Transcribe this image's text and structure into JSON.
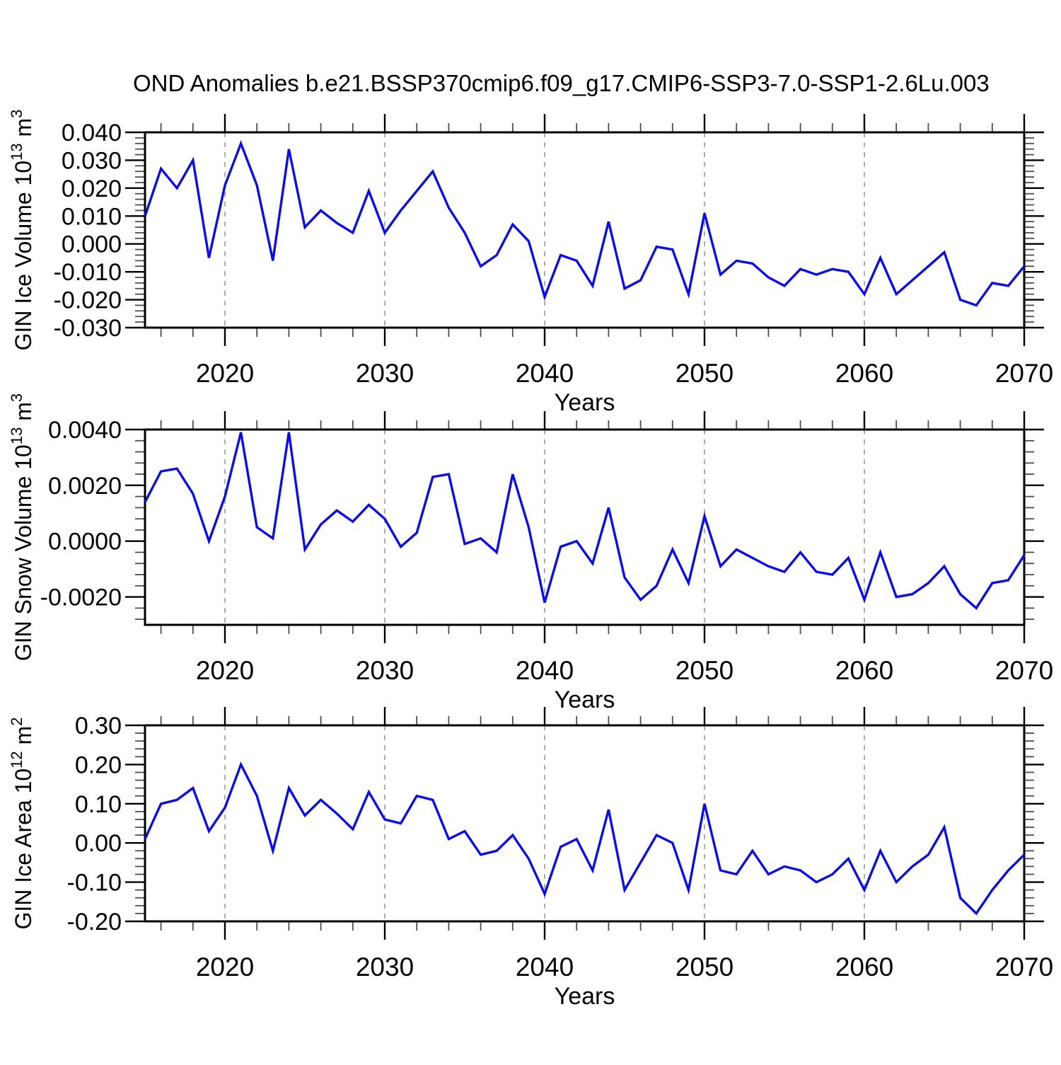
{
  "figure": {
    "title": "OND Anomalies b.e21.BSSP370cmip6.f09_g17.CMIP6-SSP3-7.0-SSP1-2.6Lu.003",
    "xlabel": "Years",
    "colors": {
      "line": "#0b0bf0",
      "axis": "#000000",
      "grid": "#9a9a9a",
      "minor_tick": "#4d4d4d",
      "background": "#ffffff"
    }
  },
  "chart_data": [
    {
      "type": "line",
      "title": "",
      "ylabel": "GIN Ice Volume 10^13 m^3",
      "ylabel_parts": [
        [
          "GIN Ice Volume 10",
          0
        ],
        [
          "13",
          1
        ],
        [
          " m",
          0
        ],
        [
          "3",
          1
        ]
      ],
      "xlabel": "Years",
      "legend": "none",
      "grid_years": [
        2020,
        2030,
        2040,
        2050,
        2060
      ],
      "xlim": [
        2015,
        2070
      ],
      "ylim": [
        -0.03,
        0.04
      ],
      "yticks": [
        0.04,
        0.03,
        0.02,
        0.01,
        0.0,
        -0.01,
        -0.02,
        -0.03
      ],
      "ytick_labels": [
        "0.040",
        "0.030",
        "0.020",
        "0.010",
        "0.000",
        "-0.010",
        "-0.020",
        "-0.030"
      ],
      "yminor_step": 0.002,
      "xticks": [
        2020,
        2030,
        2040,
        2050,
        2060,
        2070
      ],
      "xminor_step": 2,
      "x": [
        2015,
        2016,
        2017,
        2018,
        2019,
        2020,
        2021,
        2022,
        2023,
        2024,
        2025,
        2026,
        2027,
        2028,
        2029,
        2030,
        2031,
        2032,
        2033,
        2034,
        2035,
        2036,
        2037,
        2038,
        2039,
        2040,
        2041,
        2042,
        2043,
        2044,
        2045,
        2046,
        2047,
        2048,
        2049,
        2050,
        2051,
        2052,
        2053,
        2054,
        2055,
        2056,
        2057,
        2058,
        2059,
        2060,
        2061,
        2062,
        2063,
        2064,
        2065,
        2066,
        2067,
        2068,
        2069,
        2070
      ],
      "values": [
        0.01,
        0.027,
        0.02,
        0.03,
        -0.005,
        0.021,
        0.036,
        0.021,
        -0.006,
        0.034,
        0.006,
        0.012,
        0.0075,
        0.004,
        0.019,
        0.004,
        0.012,
        0.019,
        0.026,
        0.013,
        0.004,
        -0.008,
        -0.004,
        0.007,
        0.001,
        -0.019,
        -0.004,
        -0.006,
        -0.015,
        0.008,
        -0.016,
        -0.013,
        -0.001,
        -0.002,
        -0.018,
        0.011,
        -0.011,
        -0.006,
        -0.007,
        -0.012,
        -0.015,
        -0.009,
        -0.011,
        -0.009,
        -0.01,
        -0.018,
        -0.005,
        -0.018,
        -0.013,
        -0.008,
        -0.003,
        -0.02,
        -0.022,
        -0.014,
        -0.015,
        -0.008
      ]
    },
    {
      "type": "line",
      "title": "",
      "ylabel": "GIN Snow Volume 10^13 m^3",
      "ylabel_parts": [
        [
          "GIN Snow Volume 10",
          0
        ],
        [
          "13",
          1
        ],
        [
          " m",
          0
        ],
        [
          "3",
          1
        ]
      ],
      "xlabel": "Years",
      "legend": "none",
      "grid_years": [
        2020,
        2030,
        2040,
        2050,
        2060
      ],
      "xlim": [
        2015,
        2070
      ],
      "ylim": [
        -0.003,
        0.004
      ],
      "yticks": [
        0.004,
        0.002,
        0.0,
        -0.002
      ],
      "ytick_labels": [
        "0.0040",
        "0.0020",
        "0.0000",
        "-0.0020"
      ],
      "yminor_step": 0.0004,
      "xticks": [
        2020,
        2030,
        2040,
        2050,
        2060,
        2070
      ],
      "xminor_step": 2,
      "x": [
        2015,
        2016,
        2017,
        2018,
        2019,
        2020,
        2021,
        2022,
        2023,
        2024,
        2025,
        2026,
        2027,
        2028,
        2029,
        2030,
        2031,
        2032,
        2033,
        2034,
        2035,
        2036,
        2037,
        2038,
        2039,
        2040,
        2041,
        2042,
        2043,
        2044,
        2045,
        2046,
        2047,
        2048,
        2049,
        2050,
        2051,
        2052,
        2053,
        2054,
        2055,
        2056,
        2057,
        2058,
        2059,
        2060,
        2061,
        2062,
        2063,
        2064,
        2065,
        2066,
        2067,
        2068,
        2069,
        2070
      ],
      "values": [
        0.0014,
        0.0025,
        0.0026,
        0.0017,
        0.0,
        0.0016,
        0.0039,
        0.0005,
        0.0001,
        0.0039,
        -0.0003,
        0.0006,
        0.0011,
        0.0007,
        0.0013,
        0.0008,
        -0.0002,
        0.0003,
        0.0023,
        0.0024,
        -0.0001,
        0.0001,
        -0.0004,
        0.0024,
        0.0005,
        -0.0022,
        -0.0002,
        0.0,
        -0.0008,
        0.0012,
        -0.0013,
        -0.0021,
        -0.0016,
        -0.0003,
        -0.0015,
        0.0009,
        -0.0009,
        -0.0003,
        -0.0006,
        -0.0009,
        -0.0011,
        -0.0004,
        -0.0011,
        -0.0012,
        -0.0006,
        -0.0021,
        -0.0004,
        -0.002,
        -0.0019,
        -0.0015,
        -0.0009,
        -0.0019,
        -0.0024,
        -0.0015,
        -0.0014,
        -0.0005
      ]
    },
    {
      "type": "line",
      "title": "",
      "ylabel": "GIN Ice Area 10^12 m^2",
      "ylabel_parts": [
        [
          "GIN Ice Area 10",
          0
        ],
        [
          "12",
          1
        ],
        [
          " m",
          0
        ],
        [
          "2",
          1
        ]
      ],
      "xlabel": "Years",
      "legend": "none",
      "grid_years": [
        2020,
        2030,
        2040,
        2050,
        2060
      ],
      "xlim": [
        2015,
        2070
      ],
      "ylim": [
        -0.2,
        0.3
      ],
      "yticks": [
        0.3,
        0.2,
        0.1,
        0.0,
        -0.1,
        -0.2
      ],
      "ytick_labels": [
        "0.30",
        "0.20",
        "0.10",
        "0.00",
        "-0.10",
        "-0.20"
      ],
      "yminor_step": 0.02,
      "xticks": [
        2020,
        2030,
        2040,
        2050,
        2060,
        2070
      ],
      "xminor_step": 2,
      "x": [
        2015,
        2016,
        2017,
        2018,
        2019,
        2020,
        2021,
        2022,
        2023,
        2024,
        2025,
        2026,
        2027,
        2028,
        2029,
        2030,
        2031,
        2032,
        2033,
        2034,
        2035,
        2036,
        2037,
        2038,
        2039,
        2040,
        2041,
        2042,
        2043,
        2044,
        2045,
        2046,
        2047,
        2048,
        2049,
        2050,
        2051,
        2052,
        2053,
        2054,
        2055,
        2056,
        2057,
        2058,
        2059,
        2060,
        2061,
        2062,
        2063,
        2064,
        2065,
        2066,
        2067,
        2068,
        2069,
        2070
      ],
      "values": [
        0.01,
        0.1,
        0.11,
        0.14,
        0.03,
        0.09,
        0.2,
        0.12,
        -0.02,
        0.14,
        0.07,
        0.11,
        0.075,
        0.035,
        0.13,
        0.06,
        0.05,
        0.12,
        0.11,
        0.01,
        0.03,
        -0.03,
        -0.02,
        0.02,
        -0.04,
        -0.13,
        -0.01,
        0.01,
        -0.07,
        0.085,
        -0.12,
        -0.05,
        0.02,
        0.0,
        -0.12,
        0.1,
        -0.07,
        -0.08,
        -0.02,
        -0.08,
        -0.06,
        -0.07,
        -0.1,
        -0.08,
        -0.04,
        -0.12,
        -0.02,
        -0.1,
        -0.06,
        -0.03,
        0.04,
        -0.14,
        -0.18,
        -0.12,
        -0.07,
        -0.03
      ]
    }
  ]
}
